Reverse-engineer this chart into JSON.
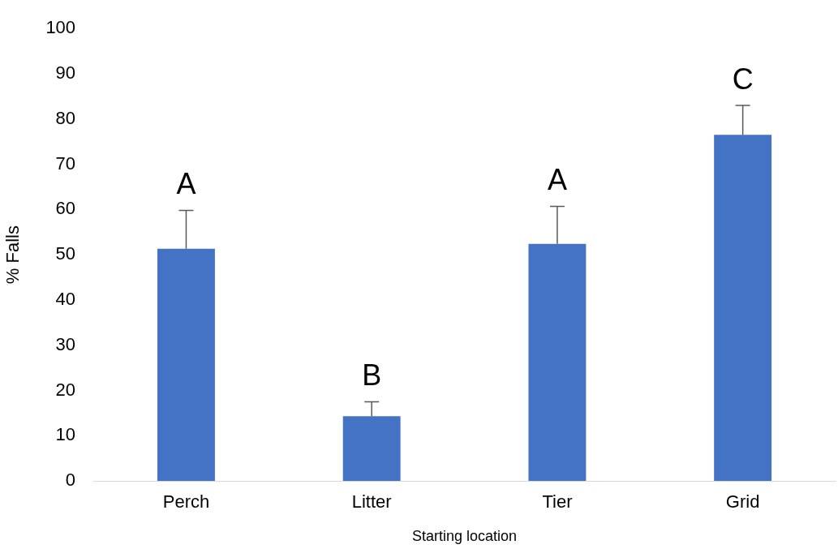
{
  "chart_data": {
    "type": "bar",
    "xlabel": "Starting location",
    "ylabel": "% Falls",
    "categories": [
      "Perch",
      "Litter",
      "Tier",
      "Grid"
    ],
    "values": [
      51.3,
      14.3,
      52.4,
      76.5
    ],
    "errors": [
      [
        51.3,
        59.8
      ],
      [
        14.3,
        17.5
      ],
      [
        52.4,
        60.7
      ],
      [
        76.5,
        83.0
      ]
    ],
    "color": "#4472c4",
    "ylim": [
      0,
      100
    ],
    "yticks": [
      0,
      10,
      20,
      30,
      40,
      50,
      60,
      70,
      80,
      90,
      100
    ],
    "grid": false,
    "legend": false,
    "annotations": [
      "A",
      "B",
      "A",
      "C"
    ]
  }
}
